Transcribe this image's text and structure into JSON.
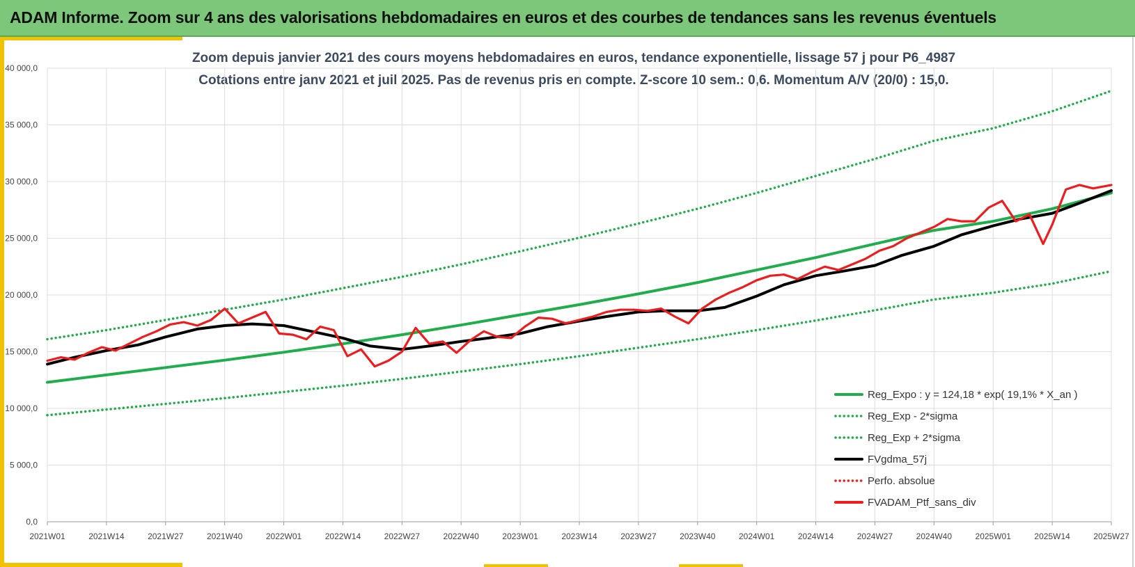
{
  "header": {
    "title": "ADAM Informe. Zoom sur 4 ans des valorisations hebdomadaires en euros et des courbes de tendances sans les revenus éventuels"
  },
  "colors": {
    "header_bg": "#7cc77a",
    "accent": "#f2c200",
    "trend_green": "#1fae4b",
    "price_red": "#ee1c1c",
    "smooth_black": "#000000"
  },
  "chart_data": {
    "type": "line",
    "subtitle_line1": "Zoom depuis janvier 2021 des cours moyens hebdomadaires  en euros, tendance exponentielle, lissage 57 j pour P6_4987",
    "subtitle_line2": "Cotations entre janv 2021 et juil 2025. Pas de revenus pris en compte. Z-score 10 sem.: 0,6. Momentum A/V (20/0) : 15,0.",
    "y_ticks": [
      "0,0",
      "5 000,0",
      "10 000,0",
      "15 000,0",
      "20 000,0",
      "25 000,0",
      "30 000,0",
      "35 000,0",
      "40 000,0"
    ],
    "ylim": [
      0,
      40000
    ],
    "x_ticks": [
      "2021W01",
      "2021W14",
      "2021W27",
      "2021W40",
      "2022W01",
      "2022W14",
      "2022W27",
      "2022W40",
      "2023W01",
      "2023W14",
      "2023W27",
      "2023W40",
      "2024W01",
      "2024W14",
      "2024W27",
      "2024W40",
      "2025W01",
      "2025W14",
      "2025W27"
    ],
    "grid": true,
    "legend_position": "bottom-right",
    "legend": [
      {
        "label": "Reg_Expo : y = 124,18 * exp( 19,1% *  X_an )",
        "color": "#1fae4b",
        "style": "solid"
      },
      {
        "label": "Reg_Exp - 2*sigma",
        "color": "#1fae4b",
        "style": "dotted"
      },
      {
        "label": "Reg_Exp + 2*sigma",
        "color": "#1fae4b",
        "style": "dotted"
      },
      {
        "label": "FVgdma_57j",
        "color": "#000000",
        "style": "solid"
      },
      {
        "label": "Perfo. absolue",
        "color": "#ee1c1c",
        "style": "dotted"
      },
      {
        "label": "FVADAM_Ptf_sans_div",
        "color": "#ee1c1c",
        "style": "solid"
      }
    ],
    "series": [
      {
        "name": "Reg_Expo : y = 124,18 * exp( 19,1% *  X_an )",
        "x": [
          0,
          13,
          26,
          39,
          52,
          65,
          78,
          91,
          104,
          117,
          130,
          143,
          156,
          169,
          182,
          195,
          208,
          221,
          234
        ],
        "values": [
          12300,
          12950,
          13600,
          14250,
          14950,
          15700,
          16500,
          17350,
          18250,
          19150,
          20100,
          21100,
          22200,
          23300,
          24500,
          25700,
          26500,
          27600,
          29000
        ]
      },
      {
        "name": "Reg_Exp - 2*sigma",
        "x": [
          0,
          13,
          26,
          39,
          52,
          65,
          78,
          91,
          104,
          117,
          130,
          143,
          156,
          169,
          182,
          195,
          208,
          221,
          234
        ],
        "values": [
          9400,
          9900,
          10400,
          10900,
          11450,
          12000,
          12600,
          13250,
          13900,
          14600,
          15350,
          16100,
          16900,
          17750,
          18650,
          19600,
          20200,
          21000,
          22100
        ]
      },
      {
        "name": "Reg_Exp + 2*sigma",
        "x": [
          0,
          13,
          26,
          39,
          52,
          65,
          78,
          91,
          104,
          117,
          130,
          143,
          156,
          169,
          182,
          195,
          208,
          221,
          234
        ],
        "values": [
          16100,
          16900,
          17800,
          18700,
          19600,
          20600,
          21600,
          22700,
          23850,
          25050,
          26300,
          27600,
          29000,
          30500,
          32000,
          33600,
          34700,
          36200,
          38000
        ]
      },
      {
        "name": "FVgdma_57j",
        "x": [
          0,
          6,
          13,
          20,
          26,
          33,
          39,
          45,
          52,
          58,
          65,
          71,
          78,
          84,
          91,
          97,
          104,
          110,
          117,
          123,
          130,
          136,
          143,
          149,
          156,
          162,
          169,
          175,
          182,
          188,
          195,
          201,
          208,
          214,
          221,
          227,
          234
        ],
        "values": [
          13900,
          14500,
          15100,
          15600,
          16300,
          17000,
          17300,
          17450,
          17300,
          16800,
          16200,
          15500,
          15200,
          15500,
          15900,
          16200,
          16600,
          17200,
          17700,
          18100,
          18500,
          18600,
          18600,
          18900,
          19900,
          20900,
          21700,
          22100,
          22600,
          23500,
          24300,
          25300,
          26100,
          26700,
          27200,
          28100,
          29200
        ]
      },
      {
        "name": "FVADAM_Ptf_sans_div",
        "x": [
          0,
          3,
          6,
          9,
          12,
          15,
          18,
          21,
          24,
          27,
          30,
          33,
          36,
          39,
          42,
          45,
          48,
          51,
          54,
          57,
          60,
          63,
          66,
          69,
          72,
          75,
          78,
          81,
          84,
          87,
          90,
          93,
          96,
          99,
          102,
          105,
          108,
          111,
          114,
          117,
          120,
          123,
          126,
          129,
          132,
          135,
          138,
          141,
          144,
          147,
          150,
          153,
          156,
          159,
          162,
          165,
          168,
          171,
          174,
          177,
          180,
          183,
          186,
          189,
          192,
          195,
          198,
          201,
          204,
          207,
          210,
          213,
          216,
          219,
          221,
          224,
          227,
          230,
          234
        ],
        "values": [
          14200,
          14500,
          14300,
          14900,
          15400,
          15100,
          15700,
          16300,
          16800,
          17400,
          17600,
          17300,
          17800,
          18800,
          17500,
          18000,
          18500,
          16600,
          16500,
          16100,
          17200,
          16900,
          14600,
          15200,
          13700,
          14200,
          15000,
          17100,
          15700,
          15900,
          14900,
          16000,
          16800,
          16300,
          16200,
          17200,
          18000,
          17900,
          17500,
          17800,
          18100,
          18500,
          18700,
          18700,
          18600,
          18800,
          18100,
          17500,
          18800,
          19600,
          20200,
          20700,
          21300,
          21700,
          21800,
          21400,
          22000,
          22500,
          22200,
          22700,
          23200,
          23900,
          24300,
          25000,
          25500,
          26000,
          26700,
          26500,
          26500,
          27700,
          28300,
          26500,
          27100,
          24500,
          26200,
          29300,
          29700,
          29400,
          29700
        ]
      }
    ]
  }
}
